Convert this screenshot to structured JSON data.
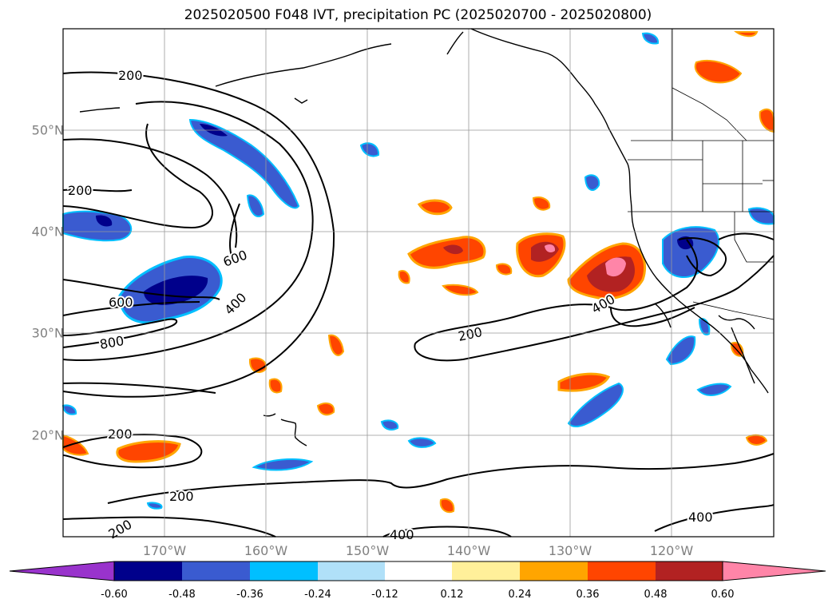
{
  "title": "2025020500 F048 IVT, precipitation PC (2025020700 - 2025020800)",
  "map": {
    "lat_labels": [
      "20°N",
      "30°N",
      "40°N",
      "50°N"
    ],
    "lon_labels": [
      "170°W",
      "160°W",
      "150°W",
      "140°W",
      "130°W",
      "120°W"
    ],
    "gridlines": true,
    "projection": "plate carree",
    "extent": {
      "lon": [
        "180°",
        "110°W"
      ],
      "lat": [
        "10°N",
        "60°N"
      ]
    }
  },
  "ivt_contours": {
    "units": "",
    "levels": [
      200,
      400,
      600,
      800
    ],
    "labels": [
      "200",
      "200",
      "600",
      "400",
      "600",
      "800",
      "200",
      "200",
      "200",
      "400",
      "400",
      "200",
      "400"
    ]
  },
  "precip_pc": {
    "colorbar_ticks": [
      "-0.60",
      "-0.48",
      "-0.36",
      "-0.24",
      "-0.12",
      "0.12",
      "0.24",
      "0.36",
      "0.48",
      "0.60"
    ],
    "colors": [
      "#9933cc",
      "#00008b",
      "#3a5bd0",
      "#00bfff",
      "#b0e0f8",
      "#ffffff",
      "#fff09a",
      "#ffa500",
      "#ff4500",
      "#b22222",
      "#ff85a8"
    ],
    "extend": "both"
  }
}
